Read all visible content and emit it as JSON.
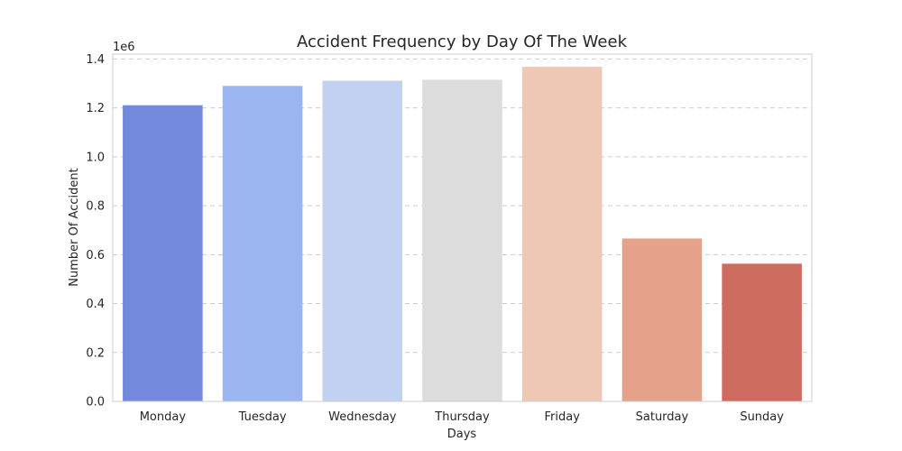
{
  "chart_data": {
    "type": "bar",
    "title": "Accident Frequency by Day Of The Week",
    "xlabel": "Days",
    "ylabel": "Number Of Accident",
    "y_offset_label": "1e6",
    "categories": [
      "Monday",
      "Tuesday",
      "Wednesday",
      "Thursday",
      "Friday",
      "Saturday",
      "Sunday"
    ],
    "values": [
      1211000,
      1290000,
      1311000,
      1315000,
      1368000,
      666000,
      563000
    ],
    "colors": [
      "#7389db",
      "#9bb5f2",
      "#c2d1f1",
      "#dcdcdc",
      "#eec7b5",
      "#e5a18a",
      "#cd6b5e"
    ],
    "ylim": [
      0,
      1420000
    ],
    "yticks": [
      0,
      200000,
      400000,
      600000,
      800000,
      1000000,
      1200000,
      1400000
    ],
    "ytick_labels": [
      "0.0",
      "0.2",
      "0.4",
      "0.6",
      "0.8",
      "1.0",
      "1.2",
      "1.4"
    ],
    "grid": true,
    "grid_axis": "y"
  }
}
